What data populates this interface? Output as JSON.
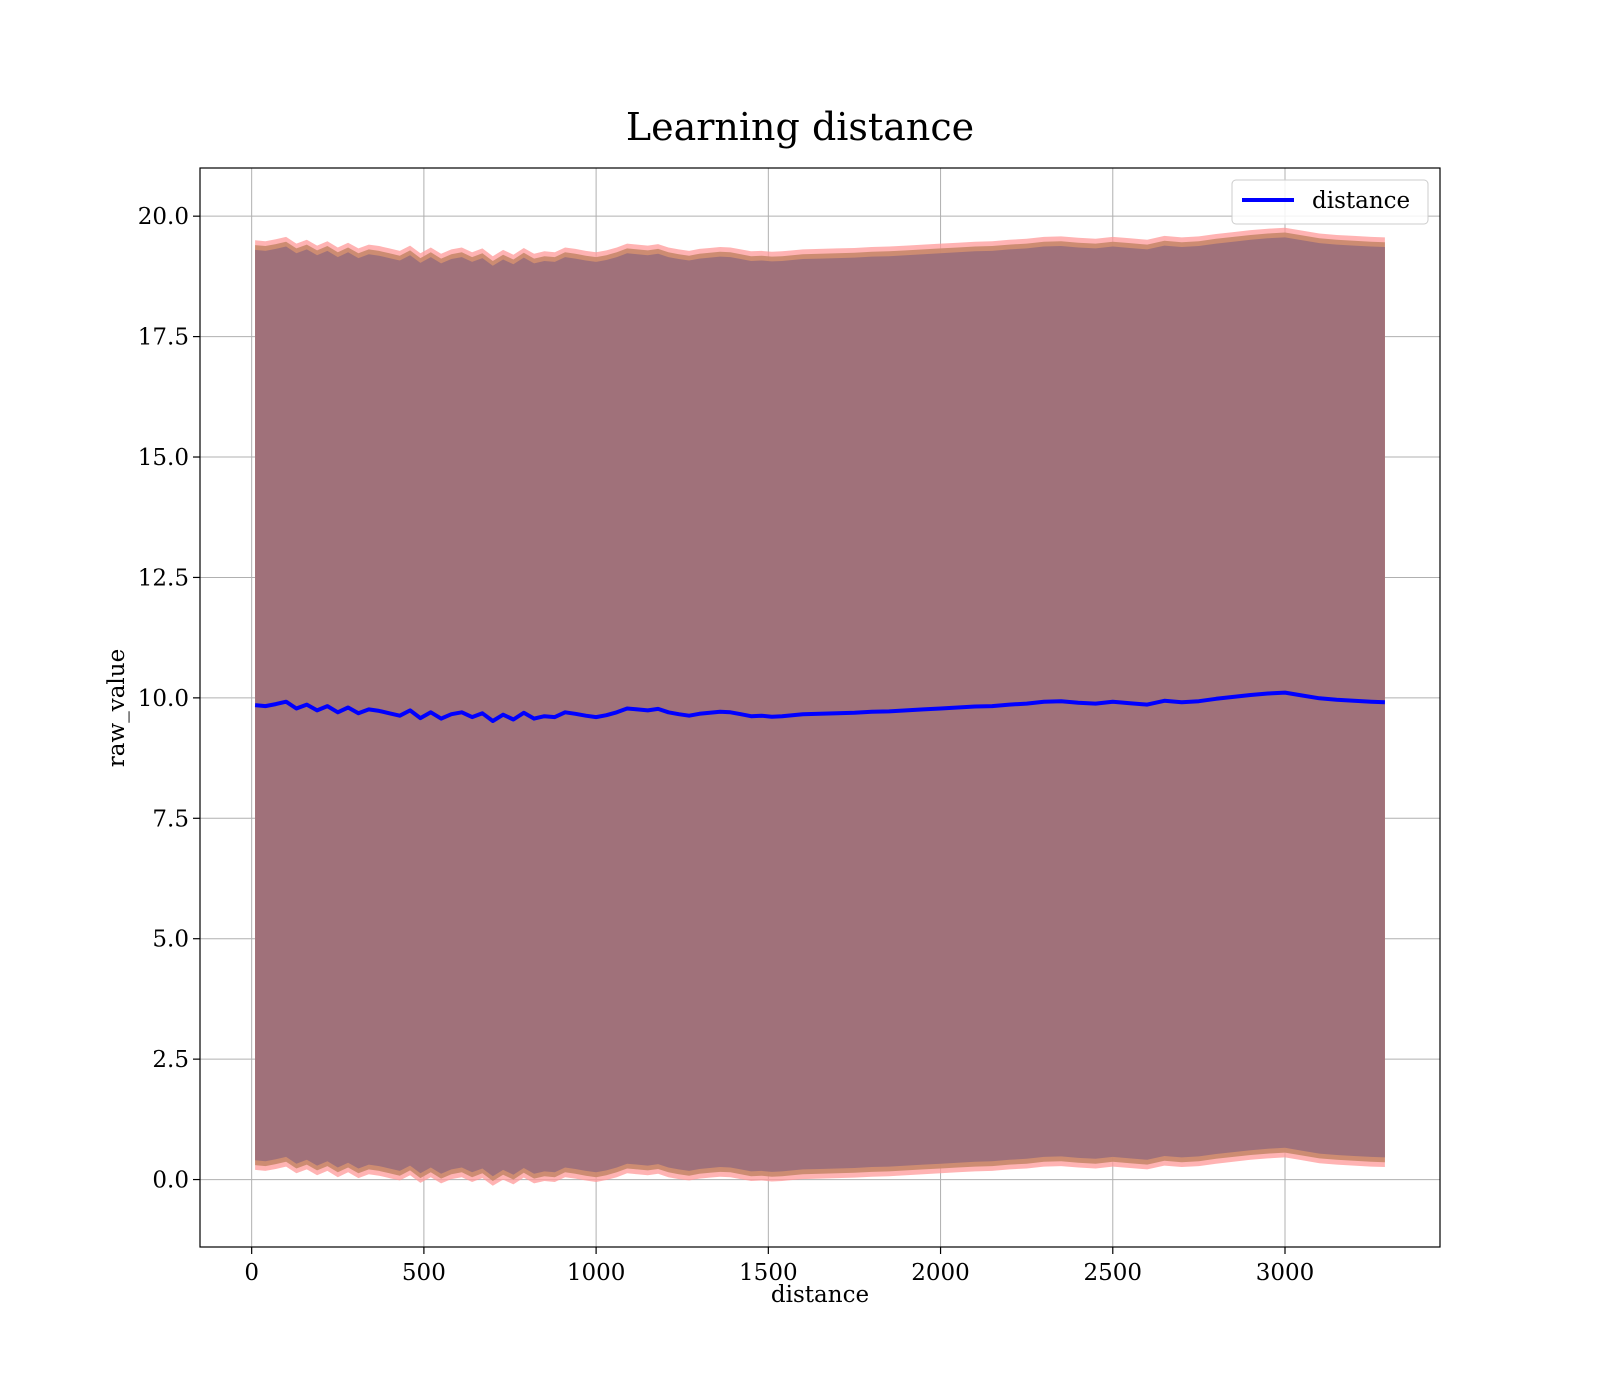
{
  "chart_data": {
    "type": "line",
    "title": "Learning distance",
    "xlabel": "distance",
    "ylabel": "raw_value",
    "xlim": [
      -150,
      3450
    ],
    "ylim": [
      -1.4,
      21.0
    ],
    "xticks": [
      0,
      500,
      1000,
      1500,
      2000,
      2500,
      3000
    ],
    "xtick_labels": [
      "0",
      "500",
      "1000",
      "1500",
      "2000",
      "2500",
      "3000"
    ],
    "yticks": [
      0.0,
      2.5,
      5.0,
      7.5,
      10.0,
      12.5,
      15.0,
      17.5,
      20.0
    ],
    "ytick_labels": [
      "0.0",
      "2.5",
      "5.0",
      "7.5",
      "10.0",
      "12.5",
      "15.0",
      "17.5",
      "20.0"
    ],
    "grid": true,
    "legend_position": "top-right",
    "colors": {
      "line": "#0000ff",
      "outer_band": "#ff9999",
      "middle_band": "#c8876a",
      "inner_band": "#a0717a",
      "grid": "#b0b0b0",
      "axes": "#000000"
    },
    "series": [
      {
        "name": "distance",
        "x": [
          10,
          40,
          70,
          100,
          130,
          160,
          190,
          220,
          250,
          280,
          310,
          340,
          370,
          400,
          430,
          460,
          490,
          520,
          550,
          580,
          610,
          640,
          670,
          700,
          730,
          760,
          790,
          820,
          850,
          880,
          910,
          940,
          970,
          1000,
          1030,
          1060,
          1090,
          1120,
          1150,
          1180,
          1210,
          1240,
          1270,
          1300,
          1330,
          1360,
          1390,
          1420,
          1450,
          1480,
          1510,
          1540,
          1570,
          1600,
          1650,
          1700,
          1750,
          1800,
          1850,
          1900,
          1950,
          2000,
          2050,
          2100,
          2150,
          2200,
          2250,
          2300,
          2350,
          2400,
          2450,
          2500,
          2550,
          2600,
          2650,
          2700,
          2750,
          2800,
          2850,
          2900,
          2950,
          3000,
          3050,
          3100,
          3150,
          3200,
          3250,
          3290
        ],
        "y": [
          9.85,
          9.83,
          9.87,
          9.92,
          9.78,
          9.86,
          9.74,
          9.83,
          9.7,
          9.8,
          9.68,
          9.76,
          9.73,
          9.68,
          9.63,
          9.74,
          9.58,
          9.7,
          9.57,
          9.66,
          9.7,
          9.6,
          9.68,
          9.52,
          9.65,
          9.55,
          9.69,
          9.57,
          9.62,
          9.6,
          9.7,
          9.67,
          9.63,
          9.6,
          9.64,
          9.7,
          9.78,
          9.76,
          9.74,
          9.77,
          9.7,
          9.66,
          9.63,
          9.67,
          9.69,
          9.71,
          9.7,
          9.66,
          9.62,
          9.63,
          9.61,
          9.62,
          9.64,
          9.66,
          9.67,
          9.68,
          9.69,
          9.71,
          9.72,
          9.74,
          9.76,
          9.78,
          9.8,
          9.82,
          9.83,
          9.86,
          9.88,
          9.92,
          9.93,
          9.9,
          9.88,
          9.92,
          9.89,
          9.86,
          9.94,
          9.91,
          9.93,
          9.98,
          10.02,
          10.06,
          10.09,
          10.11,
          10.05,
          9.99,
          9.96,
          9.94,
          9.92,
          9.91
        ]
      }
    ],
    "bands": {
      "outer_halfwidth": 9.65,
      "middle_halfwidth": 9.55,
      "inner_halfwidth": 9.45
    }
  }
}
